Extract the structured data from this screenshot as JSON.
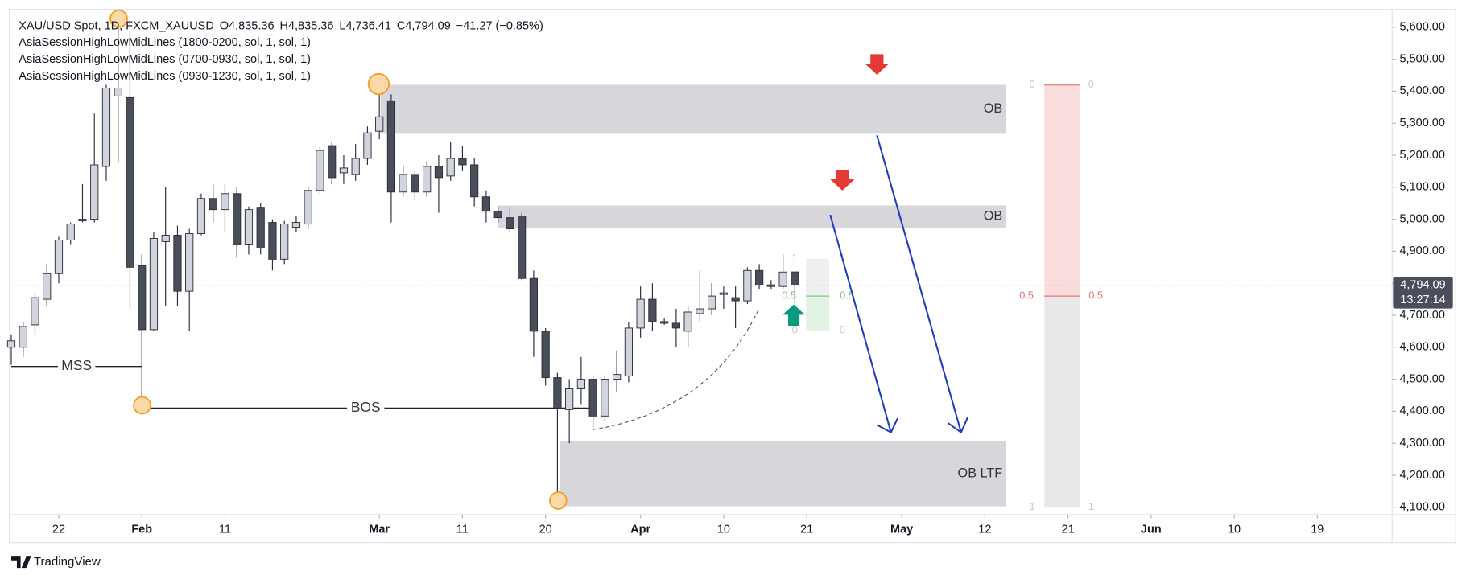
{
  "header": {
    "symbol": "XAU/USD Spot, 1D, FXCM_XAUUSD",
    "open": "O4,835.36",
    "high": "H4,835.36",
    "low": "L4,736.41",
    "close": "C4,794.09",
    "change": "−41.27 (−0.85%)"
  },
  "indicators": [
    "AsiaSessionHighLowMidLines (1800-0200, sol, 1, sol, 1)",
    "AsiaSessionHighLowMidLines (0700-0930, sol, 1, sol, 1)",
    "AsiaSessionHighLowMidLines (0930-1230, sol, 1, sol, 1)"
  ],
  "brand": "TradingView",
  "chart_data": {
    "type": "candlestick",
    "x": [
      0,
      1,
      2,
      3,
      4,
      5,
      6,
      7,
      8,
      9,
      10,
      11,
      12,
      13,
      14,
      15,
      16,
      17,
      18,
      19,
      20,
      21,
      22,
      23,
      24,
      25,
      26,
      27,
      28,
      29,
      30,
      31,
      32,
      33,
      34,
      35,
      36,
      37,
      38,
      39,
      40,
      41,
      42,
      43,
      44,
      45,
      46,
      47,
      48,
      49,
      50,
      51,
      52,
      53,
      54,
      55,
      56,
      57,
      58,
      59,
      60,
      61,
      62,
      63,
      64,
      65,
      66
    ],
    "open": [
      4600,
      4600,
      4670,
      4750,
      4830,
      4935,
      4995,
      5000,
      5165,
      5385,
      5380,
      4855,
      4655,
      4930,
      4950,
      4775,
      4955,
      5065,
      5030,
      5080,
      4920,
      5035,
      4990,
      4875,
      4975,
      4985,
      5090,
      5230,
      5145,
      5140,
      5190,
      5275,
      5370,
      5085,
      5140,
      5085,
      5165,
      5135,
      5190,
      5170,
      5070,
      5025,
      5005,
      5010,
      4815,
      4650,
      4505,
      4405,
      4470,
      4500,
      4385,
      4500,
      4510,
      4660,
      4750,
      4680,
      4675,
      4650,
      4705,
      4720,
      4765,
      4755,
      4745,
      4840,
      4795,
      4790,
      4835.36
    ],
    "high": [
      4640,
      4680,
      4770,
      4860,
      4945,
      4990,
      5110,
      5330,
      5420,
      5600,
      5590,
      4890,
      4960,
      5100,
      4980,
      4970,
      5080,
      5110,
      5110,
      5100,
      5040,
      5050,
      5000,
      4995,
      5010,
      5100,
      5225,
      5240,
      5200,
      5235,
      5290,
      5415,
      5390,
      5170,
      5150,
      5180,
      5200,
      5240,
      5230,
      5190,
      5090,
      5040,
      5040,
      5020,
      4840,
      4660,
      4520,
      4500,
      4570,
      4510,
      4510,
      4590,
      4680,
      4790,
      4800,
      4690,
      4720,
      4730,
      4840,
      4800,
      4790,
      4790,
      4850,
      4860,
      4810,
      4890,
      4835.36
    ],
    "low": [
      4545,
      4570,
      4640,
      4730,
      4800,
      4920,
      4990,
      4990,
      5120,
      5180,
      4720,
      4415,
      4650,
      4730,
      4730,
      4650,
      4950,
      4990,
      4960,
      4880,
      4890,
      4890,
      4840,
      4860,
      4960,
      4970,
      5080,
      5110,
      5110,
      5120,
      5170,
      5250,
      4990,
      5070,
      5060,
      5070,
      5020,
      5120,
      5150,
      5040,
      4990,
      4990,
      4960,
      4810,
      4570,
      4480,
      4110,
      4300,
      4420,
      4350,
      4370,
      4460,
      4490,
      4630,
      4650,
      4670,
      4600,
      4600,
      4680,
      4700,
      4720,
      4660,
      4735,
      4780,
      4780,
      4780,
      4736.41
    ],
    "close": [
      4620,
      4665,
      4755,
      4830,
      4935,
      4985,
      5000,
      5170,
      5410,
      5410,
      4850,
      4655,
      4940,
      4950,
      4775,
      4955,
      5065,
      5030,
      5080,
      4920,
      5030,
      4910,
      4875,
      4985,
      4990,
      5090,
      5215,
      5130,
      5160,
      5190,
      5270,
      5320,
      5085,
      5140,
      5085,
      5165,
      5130,
      5190,
      5170,
      5070,
      5025,
      5005,
      4970,
      4815,
      4650,
      4505,
      4410,
      4470,
      4500,
      4385,
      4500,
      4515,
      4660,
      4750,
      4680,
      4675,
      4660,
      4710,
      4720,
      4760,
      4770,
      4745,
      4840,
      4795,
      4790,
      4835,
      4794.09
    ],
    "up_color": "#d1d4dc",
    "down_color": "#4a4e5a",
    "xlim": [
      0,
      116.3
    ],
    "xticks": [
      {
        "value": 4,
        "label": "22"
      },
      {
        "value": 11,
        "label": "Feb"
      },
      {
        "value": 18,
        "label": "11"
      },
      {
        "value": 31,
        "label": "Mar"
      },
      {
        "value": 38,
        "label": "11"
      },
      {
        "value": 45,
        "label": "20"
      },
      {
        "value": 53,
        "label": "Apr"
      },
      {
        "value": 60,
        "label": "10"
      },
      {
        "value": 67,
        "label": "21"
      },
      {
        "value": 75,
        "label": "May"
      },
      {
        "value": 82,
        "label": "12"
      },
      {
        "value": 89,
        "label": "21"
      },
      {
        "value": 96,
        "label": "Jun"
      },
      {
        "value": 103,
        "label": "10"
      },
      {
        "value": 110,
        "label": "19"
      }
    ],
    "ylim": [
      4080,
      5650
    ],
    "yticks": [
      {
        "value": 4100,
        "label": "4,100.00"
      },
      {
        "value": 4200,
        "label": "4,200.00"
      },
      {
        "value": 4300,
        "label": "4,300.00"
      },
      {
        "value": 4400,
        "label": "4,400.00"
      },
      {
        "value": 4500,
        "label": "4,500.00"
      },
      {
        "value": 4600,
        "label": "4,600.00"
      },
      {
        "value": 4700,
        "label": "4,700.00"
      },
      {
        "value": 4800,
        "label": "4,800.00"
      },
      {
        "value": 4900,
        "label": "4,900.00"
      },
      {
        "value": 5000,
        "label": "5,000.00"
      },
      {
        "value": 5100,
        "label": "5,100.00"
      },
      {
        "value": 5200,
        "label": "5,200.00"
      },
      {
        "value": 5300,
        "label": "5,300.00"
      },
      {
        "value": 5400,
        "label": "5,400.00"
      },
      {
        "value": 5500,
        "label": "5,500.00"
      },
      {
        "value": 5600,
        "label": "5,600.00"
      }
    ],
    "last_price_label": "4,794.09",
    "countdown": "13:27:14",
    "zones": [
      {
        "label": "OB",
        "top": 5420,
        "bottom": 5267,
        "x": [
          31.1,
          83.8
        ]
      },
      {
        "label": "OB",
        "top": 5043,
        "bottom": 4973,
        "x": [
          41,
          83.8
        ]
      },
      {
        "label": "OB LTF",
        "top": 4307,
        "bottom": 4103,
        "x": [
          46.2,
          83.8
        ]
      }
    ],
    "levels": [
      {
        "label": "MSS",
        "value": 4540,
        "x": [
          0,
          11
        ]
      },
      {
        "label": "BOS",
        "value": 4410,
        "x": [
          11,
          48.7
        ]
      }
    ],
    "fib_levels": [
      "0",
      "0.5",
      "1"
    ]
  }
}
